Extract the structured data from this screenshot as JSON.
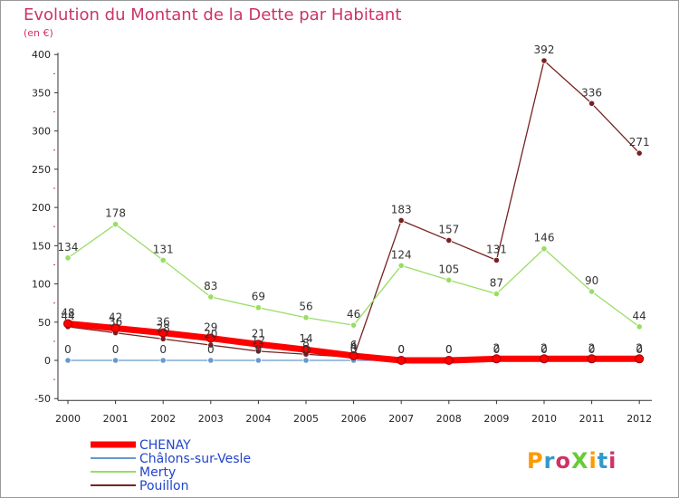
{
  "chart_data": {
    "type": "line",
    "title": "Evolution du Montant de la Dette par Habitant",
    "subtitle": "(en €)",
    "x": [
      "2000",
      "2001",
      "2002",
      "2003",
      "2004",
      "2005",
      "2006",
      "2007",
      "2008",
      "2009",
      "2010",
      "2011",
      "2012"
    ],
    "ylim": [
      -50,
      400
    ],
    "yticks": [
      -50,
      0,
      50,
      100,
      150,
      200,
      250,
      300,
      350,
      400
    ],
    "grid": false,
    "legend_position": "bottom-left",
    "series": [
      {
        "name": "CHENAY",
        "color": "#ff0000",
        "values": [
          48,
          42,
          36,
          29,
          21,
          14,
          6,
          0,
          0,
          2,
          2,
          2,
          2
        ],
        "labels": [
          "48",
          "42",
          "36",
          "29",
          "21",
          "14",
          "6",
          "0",
          "0",
          "2",
          "2",
          "2",
          "2"
        ]
      },
      {
        "name": "Châlons-sur-Vesle",
        "color": "#6699cc",
        "values": [
          0,
          0,
          0,
          0,
          0,
          0,
          0,
          0,
          0,
          0,
          0,
          0,
          0
        ],
        "labels": [
          "0",
          "0",
          "0",
          "0",
          "0",
          "0",
          "0",
          "0",
          "0",
          "0",
          "0",
          "0",
          "0"
        ]
      },
      {
        "name": "Merty",
        "color": "#99dd66",
        "values": [
          134,
          178,
          131,
          83,
          69,
          56,
          46,
          124,
          105,
          87,
          146,
          90,
          44
        ],
        "labels": [
          "134",
          "178",
          "131",
          "83",
          "69",
          "56",
          "46",
          "124",
          "105",
          "87",
          "146",
          "90",
          "44"
        ]
      },
      {
        "name": "Pouillon",
        "color": "#772222",
        "values": [
          44,
          36,
          28,
          20,
          12,
          8,
          4,
          183,
          157,
          131,
          392,
          336,
          271
        ],
        "labels": [
          "44",
          "36",
          "28",
          "20",
          "12",
          "8",
          "4",
          "183",
          "157",
          "131",
          "392",
          "336",
          "271"
        ]
      }
    ]
  },
  "brand": {
    "text": "ProXiti"
  }
}
